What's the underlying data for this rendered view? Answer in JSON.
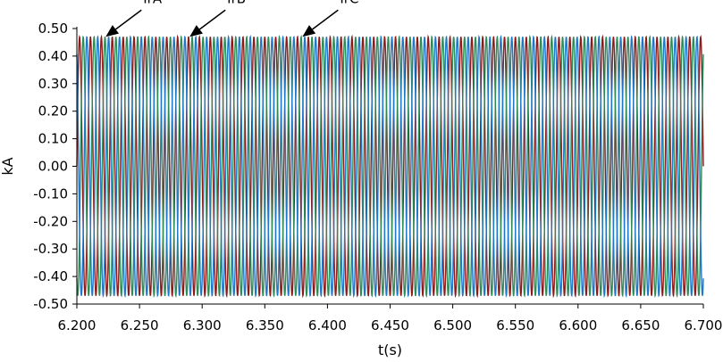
{
  "chart_data": {
    "type": "line",
    "title": "",
    "xlabel": "t(s)",
    "ylabel": "kA",
    "xlim": [
      6.2,
      6.7
    ],
    "ylim": [
      -0.5,
      0.5
    ],
    "x_ticks": [
      "6.200",
      "6.250",
      "6.300",
      "6.350",
      "6.400",
      "6.450",
      "6.500",
      "6.550",
      "6.600",
      "6.650",
      "6.700"
    ],
    "y_ticks": [
      "0.50",
      "0.40",
      "0.30",
      "0.20",
      "0.10",
      "0.00",
      "-0.10",
      "-0.20",
      "-0.30",
      "-0.40",
      "-0.50"
    ],
    "grid": false,
    "legend": "none",
    "signal": {
      "waveform": "three-phase sine",
      "amplitude_kA": 0.47,
      "frequency_hz": 115,
      "phase_shift_deg": 120,
      "x_start": 6.2,
      "x_end": 6.7
    },
    "series": [
      {
        "name": "IrA",
        "color": "#8b1a1a",
        "phase_deg": 0
      },
      {
        "name": "IrB",
        "color": "#2e8b57",
        "phase_deg": -120
      },
      {
        "name": "IrC",
        "color": "#1f77c8",
        "phase_deg": 120
      }
    ],
    "annotations": [
      {
        "text": "IrA",
        "x": 6.223,
        "y": 0.47
      },
      {
        "text": "IrB",
        "x": 6.29,
        "y": 0.47
      },
      {
        "text": "IrC",
        "x": 6.38,
        "y": 0.47
      }
    ]
  }
}
